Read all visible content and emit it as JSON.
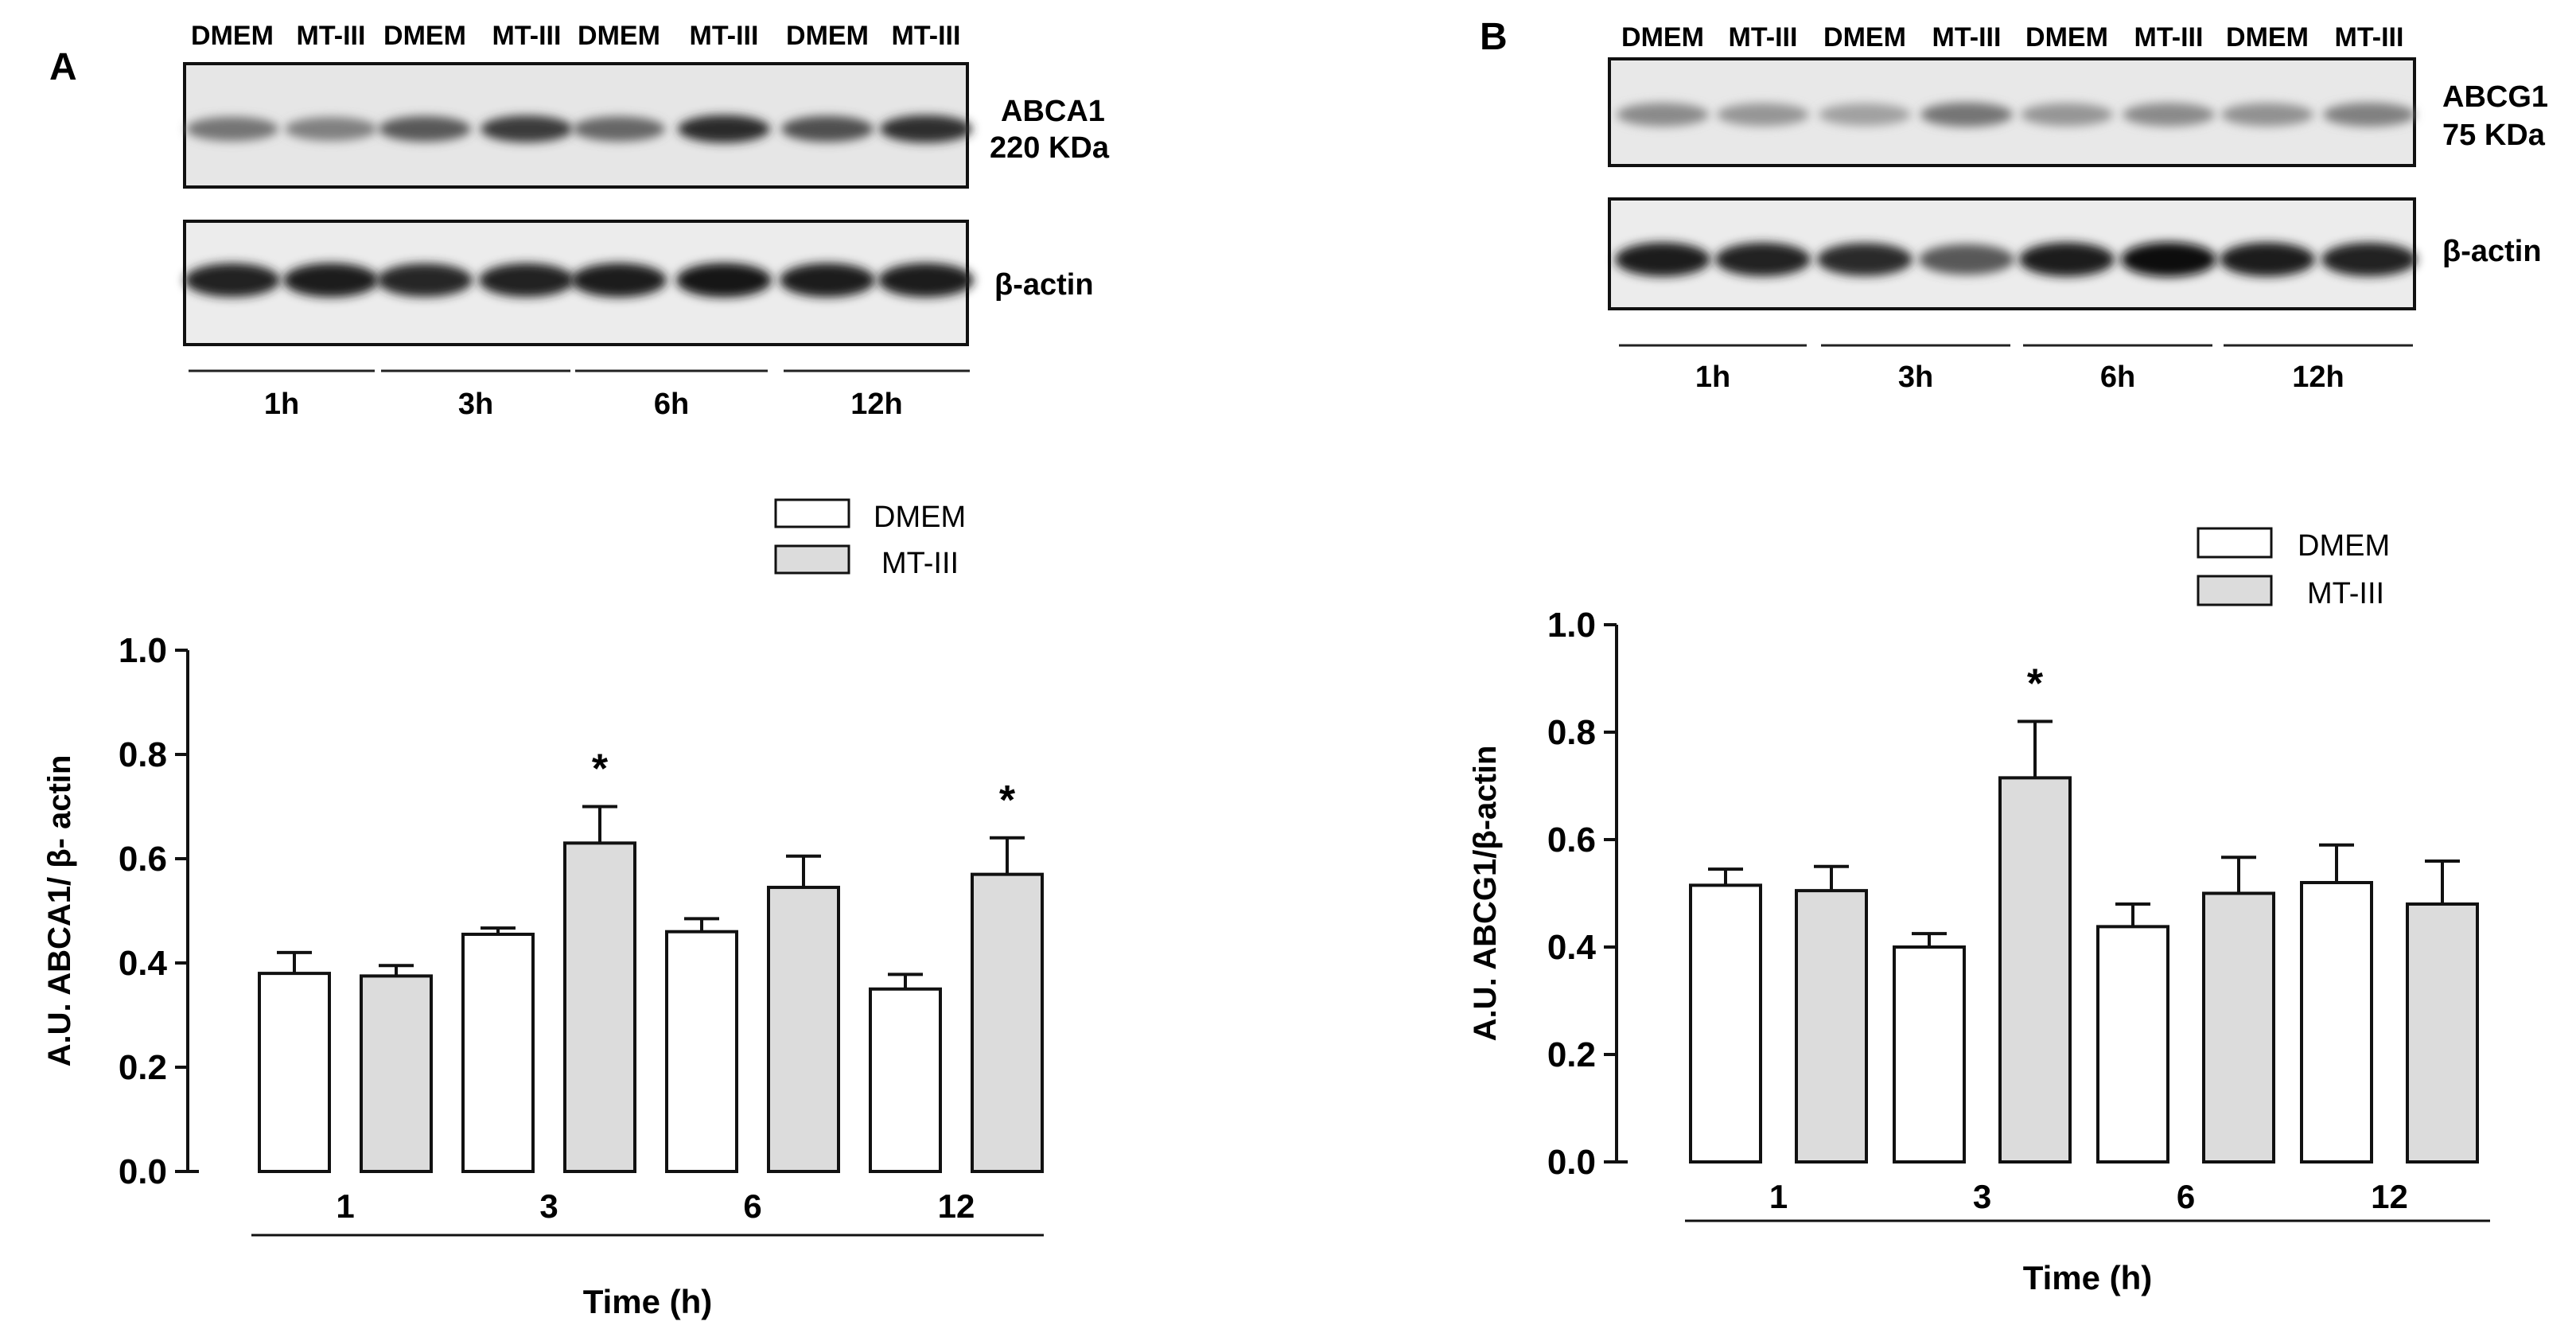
{
  "panels": [
    {
      "letter": "A",
      "blot": {
        "lane_labels": [
          "DMEM",
          "MT-III",
          "DMEM",
          "MT-III",
          "DMEM",
          "MT-III",
          "DMEM",
          "MT-III"
        ],
        "top_protein": "ABCA1",
        "top_size": "220 KDa",
        "bottom_protein": "β-actin",
        "time_groups": [
          "1h",
          "3h",
          "6h",
          "12h"
        ],
        "band_intensity_top": [
          0.55,
          0.5,
          0.68,
          0.82,
          0.62,
          0.9,
          0.72,
          0.88
        ],
        "band_intensity_bottom": [
          0.9,
          0.92,
          0.88,
          0.9,
          0.93,
          0.95,
          0.92,
          0.93
        ]
      },
      "legend": [
        "DMEM",
        "MT-III"
      ]
    },
    {
      "letter": "B",
      "blot": {
        "lane_labels": [
          "DMEM",
          "MT-III",
          "DMEM",
          "MT-III",
          "DMEM",
          "MT-III",
          "DMEM",
          "MT-III"
        ],
        "top_protein": "ABCG1",
        "top_size": "75 KDa",
        "bottom_protein": "β-actin",
        "time_groups": [
          "1h",
          "3h",
          "6h",
          "12h"
        ],
        "band_intensity_top": [
          0.45,
          0.4,
          0.35,
          0.55,
          0.4,
          0.45,
          0.42,
          0.5
        ],
        "band_intensity_bottom": [
          0.92,
          0.9,
          0.85,
          0.65,
          0.93,
          0.98,
          0.92,
          0.9
        ]
      },
      "legend": [
        "DMEM",
        "MT-III"
      ]
    }
  ],
  "chart_data": [
    {
      "type": "bar",
      "categories": [
        "1",
        "3",
        "6",
        "12"
      ],
      "series": [
        {
          "name": "DMEM",
          "color": "#ffffff",
          "values": [
            0.38,
            0.455,
            0.46,
            0.35
          ],
          "errors": [
            0.04,
            0.012,
            0.025,
            0.028
          ]
        },
        {
          "name": "MT-III",
          "color": "#dcdcdc",
          "values": [
            0.375,
            0.63,
            0.545,
            0.57
          ],
          "errors": [
            0.02,
            0.07,
            0.06,
            0.07
          ]
        }
      ],
      "significance": [
        {
          "category": "3",
          "series": "MT-III",
          "label": "*"
        },
        {
          "category": "12",
          "series": "MT-III",
          "label": "*"
        }
      ],
      "xlabel": "Time (h)",
      "ylabel": "A.U. ABCA1/ β- actin",
      "ylim": [
        0,
        1.0
      ],
      "yticks": [
        "0.0",
        "0.2",
        "0.4",
        "0.6",
        "0.8",
        "1.0"
      ],
      "legend_position": "top-right"
    },
    {
      "type": "bar",
      "categories": [
        "1",
        "3",
        "6",
        "12"
      ],
      "series": [
        {
          "name": "DMEM",
          "color": "#ffffff",
          "values": [
            0.515,
            0.4,
            0.438,
            0.52
          ],
          "errors": [
            0.03,
            0.025,
            0.042,
            0.07
          ]
        },
        {
          "name": "MT-III",
          "color": "#dcdcdc",
          "values": [
            0.505,
            0.715,
            0.5,
            0.48
          ],
          "errors": [
            0.045,
            0.105,
            0.067,
            0.08
          ]
        }
      ],
      "significance": [
        {
          "category": "3",
          "series": "MT-III",
          "label": "*"
        }
      ],
      "xlabel": "Time (h)",
      "ylabel": "A.U. ABCG1/β-actin",
      "ylim": [
        0,
        1.0
      ],
      "yticks": [
        "0.0",
        "0.2",
        "0.4",
        "0.6",
        "0.8",
        "1.0"
      ],
      "legend_position": "top-right"
    }
  ]
}
